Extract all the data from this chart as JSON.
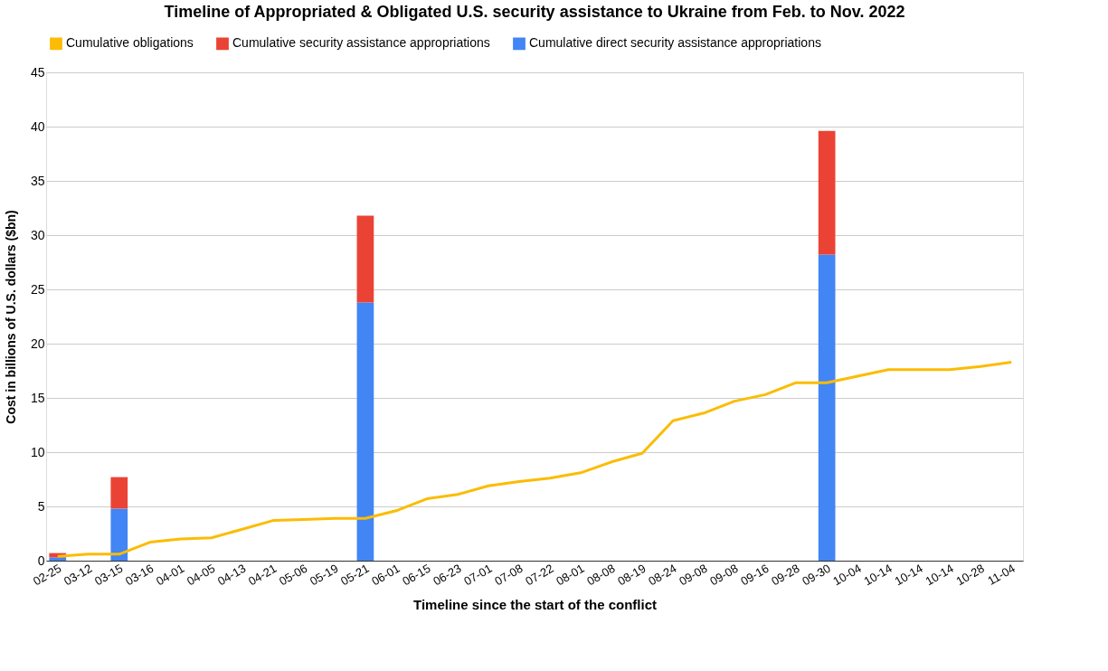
{
  "chart_data": {
    "type": "bar",
    "title": "Timeline of Appropriated & Obligated U.S. security assistance to Ukraine from Feb. to Nov. 2022",
    "xlabel": "Timeline since the start of the conflict",
    "ylabel": "Cost in billions of U.S. dollars ($bn)",
    "categories": [
      "02-25",
      "03-12",
      "03-15",
      "03-16",
      "04-01",
      "04-05",
      "04-13",
      "04-21",
      "05-06",
      "05-19",
      "05-21",
      "06-01",
      "06-15",
      "06-23",
      "07-01",
      "07-08",
      "07-22",
      "08-01",
      "08-08",
      "08-19",
      "08-24",
      "09-08",
      "09-08",
      "09-16",
      "09-28",
      "09-30",
      "10-04",
      "10-14",
      "10-14",
      "10-14",
      "10-28",
      "11-04"
    ],
    "stacked": true,
    "ylim": [
      0,
      45
    ],
    "yticks": [
      0,
      5,
      10,
      15,
      20,
      25,
      30,
      35,
      40,
      45
    ],
    "grid": "y",
    "legend": "top",
    "series": [
      {
        "name": "Cumulative obligations",
        "type": "line",
        "color": "#fbbc04",
        "values": [
          0.4,
          0.6,
          0.6,
          1.7,
          2.0,
          2.1,
          2.9,
          3.7,
          3.8,
          3.9,
          3.9,
          4.6,
          5.7,
          6.1,
          6.9,
          7.3,
          7.6,
          8.1,
          9.1,
          9.9,
          12.9,
          13.6,
          14.7,
          15.3,
          16.4,
          16.4,
          17.0,
          17.6,
          17.6,
          17.6,
          17.9,
          18.3
        ]
      },
      {
        "name": "Cumulative security assistance appropriations",
        "color": "#ea4335",
        "values": [
          0.4,
          null,
          2.9,
          null,
          null,
          null,
          null,
          null,
          null,
          null,
          8.0,
          null,
          null,
          null,
          null,
          null,
          null,
          null,
          null,
          null,
          null,
          null,
          null,
          null,
          null,
          11.4,
          null,
          null,
          null,
          null,
          null,
          null
        ]
      },
      {
        "name": "Cumulative direct security assistance appropriations",
        "color": "#4285f4",
        "values": [
          0.3,
          null,
          4.8,
          null,
          null,
          null,
          null,
          null,
          null,
          null,
          23.8,
          null,
          null,
          null,
          null,
          null,
          null,
          null,
          null,
          null,
          null,
          null,
          null,
          null,
          null,
          28.2,
          null,
          null,
          null,
          null,
          null,
          null
        ]
      }
    ]
  }
}
